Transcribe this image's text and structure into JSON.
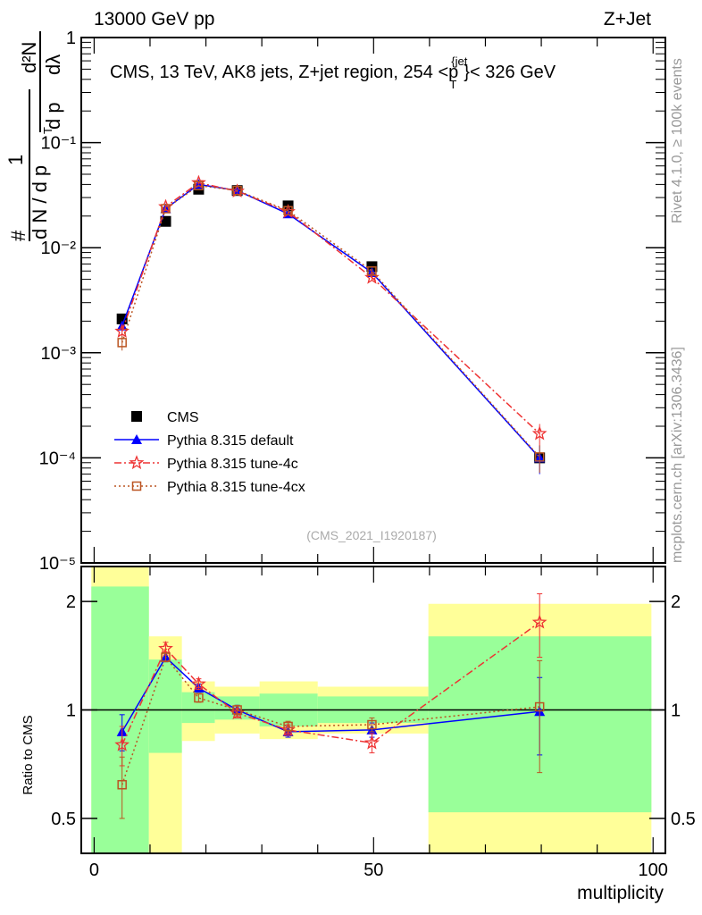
{
  "header": {
    "left": "13000 GeV pp",
    "right": "Z+Jet"
  },
  "side_labels": {
    "rivet": "Rivet 4.1.0, ≥ 100k events",
    "mcplots": "mcplots.cern.ch [arXiv:1306.3436]"
  },
  "chart_data": [
    {
      "type": "line",
      "title": "CMS, 13 TeV, AK8 jets, Z+jet region, 254 <p_T^{jet}< 326 GeV",
      "title_parts": {
        "main": "CMS, 13 TeV, AK8 jets, Z+jet region, 254 <p",
        "sup": "{jet",
        "sub": "T",
        "tail": "}< 326 GeV"
      },
      "watermark": "(CMS_2021_I1920187)",
      "ylabel": "1/N dN/dp_T dλ",
      "ylabel_parts": {
        "one": "1",
        "den": "d N / d p",
        "sub": "T",
        "num": "d²N",
        "den2": "d p",
        "dl": "dλ",
        "hash": "#"
      },
      "yscale": "log",
      "ylim": [
        1e-05,
        1
      ],
      "yticks": [
        {
          "v": 1,
          "label": "1"
        },
        {
          "v": 0.1,
          "label": "10⁻¹"
        },
        {
          "v": 0.01,
          "label": "10⁻²"
        },
        {
          "v": 0.001,
          "label": "10⁻³"
        },
        {
          "v": 0.0001,
          "label": "10⁻⁴"
        },
        {
          "v": 1e-05,
          "label": "10⁻⁵"
        }
      ],
      "xlim": [
        -2.3,
        102.2
      ],
      "x": [
        5,
        12.8,
        18.7,
        25.6,
        34.7,
        49.7,
        79.7
      ],
      "legend_position": "bottom-left",
      "series": [
        {
          "name": "CMS",
          "color": "#000000",
          "marker": "square",
          "values": [
            0.0021,
            0.0178,
            0.036,
            0.035,
            0.025,
            0.0066,
            0.0001
          ]
        },
        {
          "name": "Pythia 8.315 default",
          "color": "#0000ff",
          "marker": "triangle",
          "dash": "",
          "values": [
            0.0018,
            0.0235,
            0.04,
            0.035,
            0.021,
            0.0058,
            0.0001
          ],
          "err": [
            0.0002,
            0.001,
            0.001,
            0.001,
            0.001,
            0.0003,
            3e-05
          ]
        },
        {
          "name": "Pythia 8.315 tune-4c",
          "color": "#ee3333",
          "marker": "star",
          "dash": "8,3,2,3",
          "values": [
            0.0016,
            0.0245,
            0.0415,
            0.0345,
            0.022,
            0.0052,
            0.00017
          ],
          "err": [
            0.0002,
            0.001,
            0.001,
            0.001,
            0.001,
            0.0003,
            4e-05
          ]
        },
        {
          "name": "Pythia 8.315 tune-4cx",
          "color": "#bb5522",
          "marker": "opensquare",
          "dash": "2,3",
          "values": [
            0.00125,
            0.0235,
            0.039,
            0.035,
            0.0225,
            0.006,
            0.000102
          ],
          "err": [
            0.0002,
            0.001,
            0.001,
            0.001,
            0.001,
            0.0003,
            3e-05
          ]
        }
      ]
    },
    {
      "type": "line",
      "ylabel": "Ratio to CMS",
      "xlabel": "multiplicity",
      "yscale": "log",
      "ylim": [
        0.4,
        2.5
      ],
      "yticks": [
        {
          "v": 0.5,
          "label": "0.5"
        },
        {
          "v": 1,
          "label": "1"
        },
        {
          "v": 2,
          "label": "2"
        }
      ],
      "xticks": [
        {
          "v": 0,
          "label": "0"
        },
        {
          "v": 50,
          "label": "50"
        },
        {
          "v": 100,
          "label": "100"
        }
      ],
      "xlim": [
        -2.3,
        102.2
      ],
      "bins": [
        -0.5,
        9.8,
        15.7,
        21.6,
        29.6,
        40,
        59.8,
        99.7
      ],
      "band_green": [
        [
          0.35,
          2.2
        ],
        [
          0.76,
          1.38
        ],
        [
          0.92,
          1.12
        ],
        [
          0.94,
          1.09
        ],
        [
          0.9,
          1.11
        ],
        [
          0.92,
          1.09
        ],
        [
          0.52,
          1.6
        ]
      ],
      "band_yellow": [
        [
          0.3,
          2.6
        ],
        [
          0.38,
          1.6
        ],
        [
          0.82,
          1.2
        ],
        [
          0.86,
          1.16
        ],
        [
          0.83,
          1.2
        ],
        [
          0.86,
          1.16
        ],
        [
          0.35,
          1.97
        ]
      ],
      "band_colors": {
        "green": "#99ff99",
        "yellow": "#ffff99"
      },
      "x": [
        5,
        12.8,
        18.7,
        25.6,
        34.7,
        49.7,
        79.7
      ],
      "series": [
        {
          "name": "Pythia 8.315 default",
          "values": [
            0.87,
            1.4,
            1.15,
            1.0,
            0.87,
            0.88,
            0.99
          ],
          "err": [
            0.1,
            0.04,
            0.03,
            0.03,
            0.03,
            0.04,
            0.24
          ]
        },
        {
          "name": "Pythia 8.315 tune-4c",
          "values": [
            0.8,
            1.48,
            1.18,
            0.98,
            0.88,
            0.81,
            1.75
          ],
          "err": [
            0.1,
            0.06,
            0.04,
            0.03,
            0.03,
            0.05,
            0.35
          ]
        },
        {
          "name": "Pythia 8.315 tune-4cx",
          "values": [
            0.62,
            1.4,
            1.08,
            1.0,
            0.9,
            0.91,
            1.02
          ],
          "err": [
            0.12,
            0.04,
            0.03,
            0.03,
            0.03,
            0.04,
            0.35
          ]
        }
      ]
    }
  ]
}
